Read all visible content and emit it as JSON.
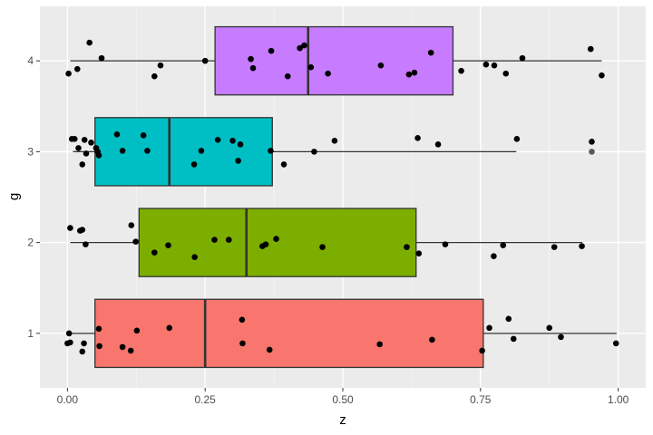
{
  "chart_data": {
    "type": "boxplot",
    "xlabel": "z",
    "ylabel": "g",
    "xlim": [
      -0.05,
      1.05
    ],
    "ylim": [
      0.4,
      4.6
    ],
    "x_ticks": [
      0.0,
      0.25,
      0.5,
      0.75,
      1.0
    ],
    "x_tick_labels": [
      "0.00",
      "0.25",
      "0.50",
      "0.75",
      "1.00"
    ],
    "y_ticks": [
      1,
      2,
      3,
      4
    ],
    "y_tick_labels": [
      "1",
      "2",
      "3",
      "4"
    ],
    "grid": true,
    "legend": "none",
    "colors": {
      "panel": "#ebebeb",
      "grid_major": "#ffffff",
      "grid_minor": "#f5f5f5",
      "point": "#000000",
      "box_stroke": "#333333"
    },
    "groups": [
      {
        "category": "1",
        "y": 1,
        "fill": "#f8766d",
        "whisker_low": 0.0,
        "q1": 0.05,
        "median": 0.25,
        "q3": 0.755,
        "whisker_high": 0.997,
        "points": [
          [
            0.003,
            1.0
          ],
          [
            0.0,
            0.89
          ],
          [
            0.005,
            0.9
          ],
          [
            0.027,
            0.8
          ],
          [
            0.03,
            0.89
          ],
          [
            0.057,
            1.05
          ],
          [
            0.058,
            0.86
          ],
          [
            0.1,
            0.85
          ],
          [
            0.115,
            0.81
          ],
          [
            0.126,
            1.03
          ],
          [
            0.185,
            1.06
          ],
          [
            0.317,
            1.15
          ],
          [
            0.318,
            0.89
          ],
          [
            0.367,
            0.82
          ],
          [
            0.567,
            0.88
          ],
          [
            0.662,
            0.93
          ],
          [
            0.753,
            0.81
          ],
          [
            0.766,
            1.06
          ],
          [
            0.801,
            1.16
          ],
          [
            0.81,
            0.94
          ],
          [
            0.875,
            1.06
          ],
          [
            0.896,
            0.96
          ],
          [
            0.996,
            0.89
          ]
        ]
      },
      {
        "category": "2",
        "y": 2,
        "fill": "#7cae00",
        "whisker_low": 0.005,
        "q1": 0.13,
        "median": 0.325,
        "q3": 0.633,
        "whisker_high": 0.935,
        "points": [
          [
            0.005,
            2.16
          ],
          [
            0.023,
            2.13
          ],
          [
            0.027,
            2.14
          ],
          [
            0.033,
            1.98
          ],
          [
            0.116,
            2.19
          ],
          [
            0.124,
            2.01
          ],
          [
            0.158,
            1.89
          ],
          [
            0.183,
            1.97
          ],
          [
            0.231,
            1.84
          ],
          [
            0.267,
            2.03
          ],
          [
            0.293,
            2.03
          ],
          [
            0.354,
            1.96
          ],
          [
            0.36,
            1.98
          ],
          [
            0.379,
            2.04
          ],
          [
            0.463,
            1.95
          ],
          [
            0.616,
            1.95
          ],
          [
            0.638,
            1.88
          ],
          [
            0.686,
            1.98
          ],
          [
            0.774,
            1.85
          ],
          [
            0.791,
            1.97
          ],
          [
            0.884,
            1.95
          ],
          [
            0.934,
            1.96
          ]
        ]
      },
      {
        "category": "3",
        "y": 3,
        "fill": "#00bfc4",
        "whisker_low": 0.01,
        "q1": 0.05,
        "median": 0.185,
        "q3": 0.372,
        "whisker_high": 0.815,
        "points": [
          [
            0.008,
            3.14
          ],
          [
            0.013,
            3.14
          ],
          [
            0.02,
            3.04
          ],
          [
            0.027,
            2.86
          ],
          [
            0.031,
            3.13
          ],
          [
            0.034,
            2.98
          ],
          [
            0.043,
            3.1
          ],
          [
            0.052,
            3.04
          ],
          [
            0.055,
            3.0
          ],
          [
            0.057,
            2.96
          ],
          [
            0.09,
            3.19
          ],
          [
            0.1,
            3.01
          ],
          [
            0.138,
            3.18
          ],
          [
            0.145,
            3.01
          ],
          [
            0.23,
            2.86
          ],
          [
            0.243,
            3.01
          ],
          [
            0.273,
            3.13
          ],
          [
            0.3,
            3.12
          ],
          [
            0.31,
            2.9
          ],
          [
            0.314,
            3.08
          ],
          [
            0.369,
            3.01
          ],
          [
            0.393,
            2.86
          ],
          [
            0.448,
            3.0
          ],
          [
            0.485,
            3.12
          ],
          [
            0.636,
            3.15
          ],
          [
            0.673,
            3.08
          ],
          [
            0.816,
            3.14
          ],
          [
            0.952,
            3.11
          ]
        ]
      },
      {
        "category": "4",
        "y": 4,
        "fill": "#c77cff",
        "whisker_low": 0.005,
        "q1": 0.268,
        "median": 0.437,
        "q3": 0.7,
        "whisker_high": 0.97,
        "points": [
          [
            0.002,
            3.86
          ],
          [
            0.018,
            3.91
          ],
          [
            0.04,
            4.2
          ],
          [
            0.062,
            4.03
          ],
          [
            0.158,
            3.83
          ],
          [
            0.169,
            3.95
          ],
          [
            0.25,
            4.0
          ],
          [
            0.333,
            4.02
          ],
          [
            0.337,
            3.92
          ],
          [
            0.37,
            4.11
          ],
          [
            0.4,
            3.83
          ],
          [
            0.422,
            4.14
          ],
          [
            0.43,
            4.17
          ],
          [
            0.442,
            3.93
          ],
          [
            0.473,
            3.86
          ],
          [
            0.569,
            3.95
          ],
          [
            0.62,
            3.85
          ],
          [
            0.63,
            3.87
          ],
          [
            0.66,
            4.09
          ],
          [
            0.715,
            3.89
          ],
          [
            0.76,
            3.96
          ],
          [
            0.775,
            3.95
          ],
          [
            0.796,
            3.86
          ],
          [
            0.826,
            4.03
          ],
          [
            0.95,
            4.13
          ],
          [
            0.97,
            3.84
          ]
        ]
      }
    ],
    "outliers": [
      {
        "category": "3",
        "x": 0.952,
        "y": 3.0
      }
    ]
  }
}
